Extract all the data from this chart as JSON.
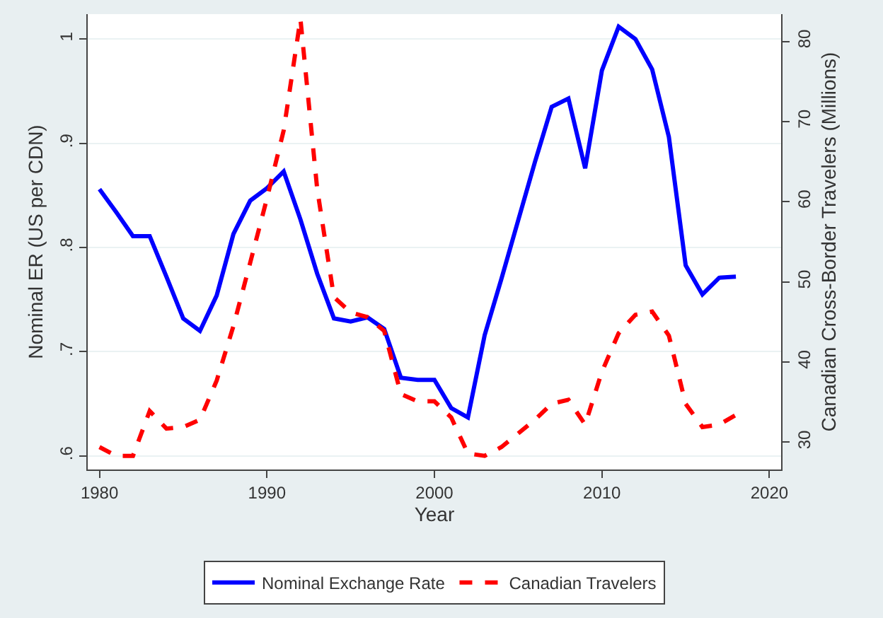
{
  "chart_data": {
    "type": "line",
    "xlabel": "Year",
    "ylabel": "Nominal ER (US per CDN)",
    "y2label": "Canadian Cross-Border Travelers (Millions)",
    "x": [
      1980,
      1981,
      1982,
      1983,
      1984,
      1985,
      1986,
      1987,
      1988,
      1989,
      1990,
      1991,
      1992,
      1993,
      1994,
      1995,
      1996,
      1997,
      1998,
      1999,
      2000,
      2001,
      2002,
      2003,
      2004,
      2005,
      2006,
      2007,
      2008,
      2009,
      2010,
      2011,
      2012,
      2013,
      2014,
      2015,
      2016,
      2017,
      2018
    ],
    "series": [
      {
        "name": "Nominal Exchange Rate",
        "color": "#0000ff",
        "line_style": "solid",
        "values": [
          0.856,
          0.834,
          0.811,
          0.811,
          0.772,
          0.732,
          0.72,
          0.754,
          0.813,
          0.845,
          0.857,
          0.873,
          0.827,
          0.775,
          0.732,
          0.729,
          0.733,
          0.722,
          0.675,
          0.673,
          0.673,
          0.646,
          0.637,
          0.716,
          0.77,
          0.826,
          0.882,
          0.935,
          0.943,
          0.876,
          0.97,
          1.012,
          1.0,
          0.971,
          0.906,
          0.783,
          0.755,
          0.771,
          0.772
        ]
      },
      {
        "name": "Canadian Travelers",
        "color": "#ff0000",
        "line_style": "dashed",
        "axis": "y2",
        "values": [
          29.4,
          28.3,
          28.3,
          33.9,
          31.7,
          31.9,
          32.8,
          37.7,
          44.5,
          52.4,
          60.4,
          68.9,
          82.8,
          61.6,
          48.1,
          46.2,
          45.6,
          43.9,
          36.0,
          35.1,
          35.1,
          33.1,
          28.6,
          28.3,
          29.4,
          31.1,
          32.8,
          34.8,
          35.3,
          32.2,
          38.8,
          43.6,
          45.9,
          46.3,
          43.3,
          34.8,
          31.9,
          32.2,
          33.4
        ]
      }
    ],
    "xlim": [
      1979.3,
      2020.7
    ],
    "xticks": [
      1980,
      1990,
      2000,
      2010,
      2020
    ],
    "ylim": [
      0.587,
      1.024
    ],
    "yticks": [
      {
        "value": 0.6,
        "label": ".6"
      },
      {
        "value": 0.7,
        "label": ".7"
      },
      {
        "value": 0.8,
        "label": ".8"
      },
      {
        "value": 0.9,
        "label": ".9"
      },
      1
    ],
    "y2lim": [
      26.6,
      83.4
    ],
    "y2ticks": [
      30,
      40,
      50,
      60,
      70,
      80
    ],
    "grid": "y",
    "legend": "bottom",
    "marker": "none"
  }
}
